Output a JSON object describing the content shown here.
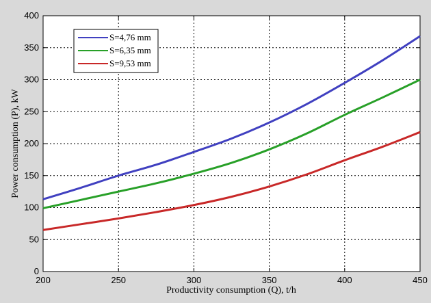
{
  "chart_data": {
    "type": "line",
    "xlabel": "Productivity consumption (Q), t/h",
    "ylabel": "Power consumption (P), kW",
    "xlim": [
      200,
      450
    ],
    "ylim": [
      0,
      400
    ],
    "xticks": [
      200,
      250,
      300,
      350,
      400,
      450
    ],
    "yticks": [
      0,
      50,
      100,
      150,
      200,
      250,
      300,
      350,
      400
    ],
    "grid": true,
    "legend_position": "top-left",
    "x": [
      200,
      225,
      250,
      275,
      300,
      325,
      350,
      375,
      400,
      425,
      450
    ],
    "series": [
      {
        "name": "S=4,76 mm",
        "color": "#4040c0",
        "values": [
          113,
          131,
          150,
          167,
          187,
          208,
          233,
          262,
          295,
          330,
          368
        ]
      },
      {
        "name": "S=6,35 mm",
        "color": "#28a028",
        "values": [
          99,
          112,
          125,
          138,
          153,
          170,
          191,
          216,
          245,
          272,
          300
        ]
      },
      {
        "name": "S=9,53 mm",
        "color": "#c82828",
        "values": [
          65,
          74,
          83,
          93,
          104,
          117,
          133,
          152,
          174,
          195,
          218
        ]
      }
    ]
  }
}
